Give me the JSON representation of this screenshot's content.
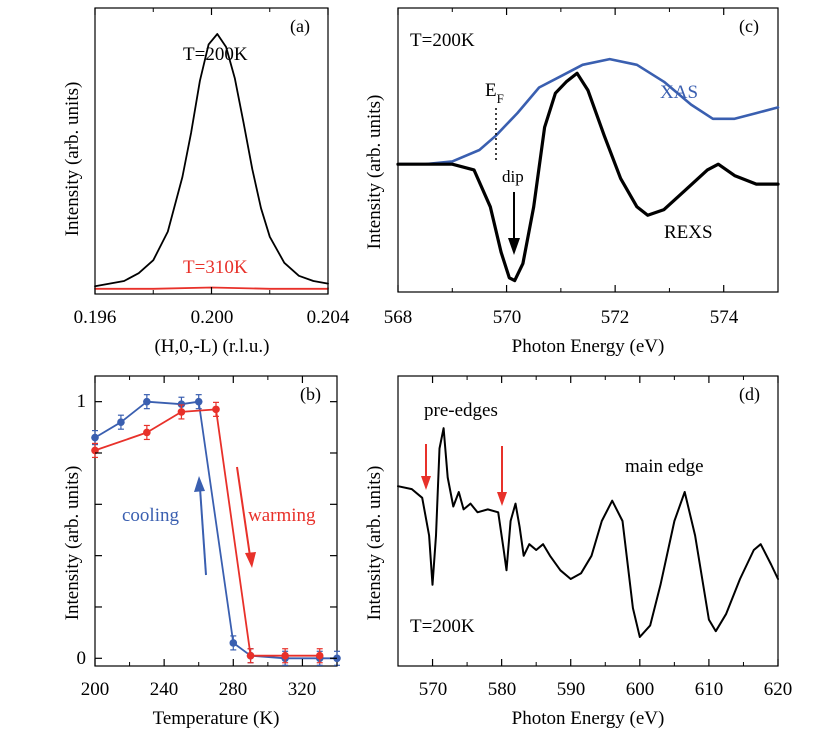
{
  "chart_data": [
    {
      "panel": "(a)",
      "type": "line",
      "xlabel": "(H,0,-L)  (r.l.u.)",
      "ylabel": "Intensity  (arb. units)",
      "xlim": [
        0.196,
        0.204
      ],
      "ylim": [
        0,
        1.1
      ],
      "xticks": [
        0.196,
        0.2,
        0.204
      ],
      "xtick_labels": [
        "0.196",
        "0.200",
        "0.204"
      ],
      "series": [
        {
          "name": "T=200K",
          "color": "#000000",
          "x": [
            0.196,
            0.1965,
            0.197,
            0.1975,
            0.198,
            0.1985,
            0.199,
            0.1993,
            0.1996,
            0.1999,
            0.2002,
            0.2005,
            0.2008,
            0.2011,
            0.2014,
            0.2017,
            0.202,
            0.2025,
            0.203,
            0.2035,
            0.204
          ],
          "y": [
            0.03,
            0.04,
            0.05,
            0.08,
            0.13,
            0.24,
            0.45,
            0.62,
            0.82,
            0.96,
            1.0,
            0.95,
            0.83,
            0.66,
            0.48,
            0.33,
            0.22,
            0.12,
            0.07,
            0.05,
            0.04
          ]
        },
        {
          "name": "T=310K",
          "color": "#e8312a",
          "x": [
            0.196,
            0.198,
            0.2,
            0.202,
            0.204
          ],
          "y": [
            0.02,
            0.02,
            0.025,
            0.02,
            0.02
          ]
        }
      ],
      "annotations": [
        "T=200K",
        "T=310K"
      ]
    },
    {
      "panel": "(b)",
      "type": "line",
      "xlabel": "Temperature  (K)",
      "ylabel": "Intensity  (arb. units)",
      "xlim": [
        200,
        340
      ],
      "ylim": [
        -0.03,
        1.1
      ],
      "xticks": [
        200,
        240,
        280,
        320
      ],
      "xtick_labels": [
        "200",
        "240",
        "280",
        "320"
      ],
      "yticks": [
        0,
        1
      ],
      "ytick_labels": [
        "0",
        "1"
      ],
      "series": [
        {
          "name": "cooling",
          "color": "#3a5fb0",
          "x": [
            200,
            215,
            230,
            250,
            260,
            280,
            290,
            310,
            330,
            340
          ],
          "y": [
            0.86,
            0.92,
            1.0,
            0.99,
            1.0,
            0.06,
            0.01,
            0.0,
            0.0,
            0.0
          ]
        },
        {
          "name": "warming",
          "color": "#e8312a",
          "x": [
            200,
            230,
            250,
            270,
            290,
            310,
            330
          ],
          "y": [
            0.81,
            0.88,
            0.96,
            0.97,
            0.01,
            0.01,
            0.01
          ]
        }
      ],
      "annotations": [
        "cooling",
        "warming"
      ]
    },
    {
      "panel": "(c)",
      "type": "line",
      "xlabel": "Photon Energy  (eV)",
      "ylabel": "Intensity  (arb. units)",
      "xlim": [
        568,
        575
      ],
      "ylim": [
        0,
        1
      ],
      "xticks": [
        568,
        570,
        572,
        574
      ],
      "xtick_labels": [
        "568",
        "570",
        "572",
        "574"
      ],
      "series": [
        {
          "name": "XAS",
          "color": "#3a5fb0",
          "x": [
            568,
            568.5,
            569,
            569.5,
            569.8,
            570.2,
            570.6,
            571.0,
            571.4,
            571.9,
            572.4,
            572.9,
            573.4,
            573.8,
            574.2,
            574.6,
            575
          ],
          "y": [
            0.45,
            0.45,
            0.46,
            0.5,
            0.55,
            0.63,
            0.72,
            0.76,
            0.8,
            0.82,
            0.8,
            0.74,
            0.66,
            0.61,
            0.61,
            0.63,
            0.65
          ]
        },
        {
          "name": "REXS",
          "color": "#000000",
          "x": [
            568,
            568.5,
            569,
            569.4,
            569.7,
            569.9,
            570.05,
            570.15,
            570.3,
            570.5,
            570.7,
            570.9,
            571.1,
            571.3,
            571.5,
            571.8,
            572.1,
            572.4,
            572.6,
            572.9,
            573.3,
            573.7,
            573.9,
            574.2,
            574.6,
            575
          ],
          "y": [
            0.45,
            0.45,
            0.45,
            0.43,
            0.3,
            0.14,
            0.05,
            0.04,
            0.1,
            0.3,
            0.58,
            0.7,
            0.74,
            0.77,
            0.71,
            0.55,
            0.4,
            0.3,
            0.27,
            0.29,
            0.36,
            0.43,
            0.45,
            0.41,
            0.38,
            0.38
          ]
        }
      ],
      "annotations": [
        "T=200K",
        "E",
        "F",
        "dip",
        "XAS",
        "REXS"
      ]
    },
    {
      "panel": "(d)",
      "type": "line",
      "xlabel": "Photon Energy  (eV)",
      "ylabel": "Intensity  (arb. units)",
      "xlim": [
        565,
        620
      ],
      "ylim": [
        0,
        1
      ],
      "xticks": [
        570,
        580,
        590,
        600,
        610,
        620
      ],
      "xtick_labels": [
        "570",
        "580",
        "590",
        "600",
        "610",
        "620"
      ],
      "series": [
        {
          "name": "spectrum",
          "color": "#000000",
          "x": [
            565,
            567,
            568.5,
            569.5,
            570.0,
            570.5,
            571.0,
            571.6,
            572.2,
            573.0,
            573.8,
            574.5,
            575.5,
            576.5,
            578,
            579.5,
            580.3,
            580.7,
            581.3,
            582.0,
            582.6,
            583.2,
            584,
            585,
            586,
            587,
            588.5,
            590,
            591.5,
            593,
            594.5,
            596,
            597.5,
            599,
            600,
            601.5,
            603,
            605,
            606.5,
            608,
            610,
            611,
            612.5,
            614.5,
            616.5,
            617.5,
            619,
            620
          ],
          "y": [
            0.62,
            0.61,
            0.58,
            0.45,
            0.28,
            0.45,
            0.75,
            0.82,
            0.65,
            0.55,
            0.6,
            0.54,
            0.56,
            0.53,
            0.54,
            0.53,
            0.4,
            0.33,
            0.5,
            0.56,
            0.48,
            0.38,
            0.42,
            0.4,
            0.42,
            0.38,
            0.33,
            0.3,
            0.32,
            0.38,
            0.5,
            0.57,
            0.5,
            0.2,
            0.1,
            0.14,
            0.28,
            0.5,
            0.6,
            0.45,
            0.16,
            0.12,
            0.18,
            0.3,
            0.4,
            0.42,
            0.35,
            0.3
          ]
        }
      ],
      "annotations": [
        "pre-edges",
        "main edge",
        "T=200K"
      ]
    }
  ],
  "panels": {
    "a": {
      "label": "(a)",
      "ylabel": "Intensity  (arb. units)",
      "xlabel": "(H,0,-L)  (r.l.u.)",
      "ticks": [
        "0.196",
        "0.200",
        "0.204"
      ],
      "t200": "T=200K",
      "t310": "T=310K"
    },
    "b": {
      "label": "(b)",
      "ylabel": "Intensity  (arb. units)",
      "xlabel": "Temperature  (K)",
      "ticks": [
        "200",
        "240",
        "280",
        "320"
      ],
      "yticks": [
        "0",
        "1"
      ],
      "cooling": "cooling",
      "warming": "warming"
    },
    "c": {
      "label": "(c)",
      "ylabel": "Intensity  (arb. units)",
      "xlabel": "Photon Energy  (eV)",
      "ticks": [
        "568",
        "570",
        "572",
        "574"
      ],
      "temp": "T=200K",
      "ef_main": "E",
      "ef_sub": "F",
      "dip": "dip",
      "xas": "XAS",
      "rexs": "REXS"
    },
    "d": {
      "label": "(d)",
      "ylabel": "Intensity  (arb. units)",
      "xlabel": "Photon Energy  (eV)",
      "ticks": [
        "570",
        "580",
        "590",
        "600",
        "610",
        "620"
      ],
      "preedges": "pre-edges",
      "mainedge": "main edge",
      "temp": "T=200K"
    }
  },
  "colors": {
    "black": "#000000",
    "blue": "#3a5fb0",
    "red": "#e8312a"
  }
}
